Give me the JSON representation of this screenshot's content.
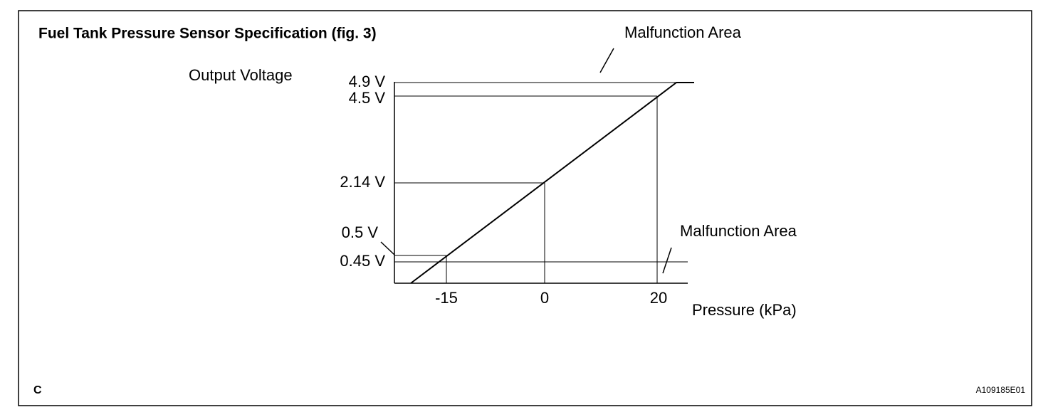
{
  "title": "Fuel Tank Pressure Sensor Specification (fig. 3)",
  "malfunction_upper": "Malfunction Area",
  "malfunction_lower": "Malfunction Area",
  "y_axis_label": "Output Voltage",
  "x_axis_label": "Pressure (kPa)",
  "y_labels": [
    "4.9 V",
    "4.5 V",
    "2.14 V",
    "0.5 V",
    "0.45 V"
  ],
  "x_labels": [
    "-15",
    "0",
    "20"
  ],
  "footer_left": "C",
  "footer_right": "A109185E01"
}
